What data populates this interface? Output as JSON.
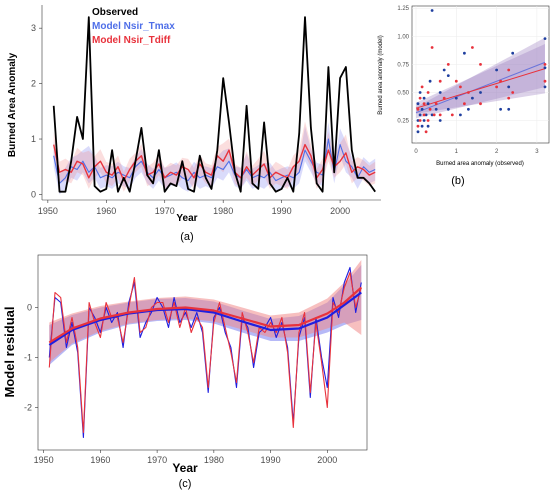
{
  "colors": {
    "observed": "#000000",
    "nsir_tmax": "#4f6fe8",
    "nsir_tdiff": "#e8323c",
    "band_blue": "#7a7ff0",
    "band_red": "#f08a8a",
    "obs_point": "#1f3f9f",
    "fit_band": "#9a7fbf"
  },
  "chart_data": [
    {
      "id": "a",
      "type": "line",
      "panel_label": "(a)",
      "xlabel": "Year",
      "ylabel": "Burned Area Anomaly",
      "xlim": [
        1949,
        2007
      ],
      "ylim": [
        -0.1,
        3.4
      ],
      "xticks": [
        1950,
        1960,
        1970,
        1980,
        1990,
        2000
      ],
      "yticks": [
        0,
        1,
        2,
        3
      ],
      "legend_position": "top-left",
      "x": [
        1951,
        1952,
        1953,
        1954,
        1955,
        1956,
        1957,
        1958,
        1959,
        1960,
        1961,
        1962,
        1963,
        1964,
        1965,
        1966,
        1967,
        1968,
        1969,
        1970,
        1971,
        1972,
        1973,
        1974,
        1975,
        1976,
        1977,
        1978,
        1979,
        1980,
        1981,
        1982,
        1983,
        1984,
        1985,
        1986,
        1987,
        1988,
        1989,
        1990,
        1991,
        1992,
        1993,
        1994,
        1995,
        1996,
        1997,
        1998,
        1999,
        2000,
        2001,
        2002,
        2003,
        2004,
        2005,
        2006
      ],
      "series": [
        {
          "name": "Observed",
          "color": "#000000",
          "values": [
            1.6,
            0.05,
            0.05,
            0.6,
            1.4,
            1.0,
            3.2,
            0.15,
            0.05,
            0.1,
            0.8,
            0.05,
            0.3,
            0.05,
            0.6,
            1.2,
            0.35,
            0.2,
            0.8,
            0.05,
            0.2,
            0.15,
            0.6,
            0.1,
            0.05,
            0.7,
            0.3,
            0.1,
            0.8,
            2.1,
            1.3,
            0.4,
            0.05,
            1.6,
            0.2,
            0.1,
            1.3,
            0.2,
            0.05,
            0.1,
            0.3,
            0.05,
            1.1,
            3.2,
            1.2,
            0.2,
            0.05,
            2.3,
            0.4,
            2.1,
            2.3,
            0.8,
            0.3,
            0.3,
            0.2,
            0.05
          ]
        },
        {
          "name": "Model Nsir_Tmax",
          "color": "#4f6fe8",
          "values": [
            0.7,
            0.2,
            0.3,
            0.5,
            0.45,
            0.6,
            0.4,
            0.5,
            0.3,
            0.35,
            0.3,
            0.4,
            0.35,
            0.3,
            0.5,
            0.6,
            0.4,
            0.3,
            0.45,
            0.3,
            0.35,
            0.4,
            0.3,
            0.25,
            0.4,
            0.3,
            0.35,
            0.3,
            0.5,
            0.45,
            0.6,
            0.35,
            0.3,
            0.45,
            0.3,
            0.35,
            0.3,
            0.4,
            0.25,
            0.3,
            0.35,
            0.3,
            0.4,
            0.8,
            0.6,
            0.4,
            0.35,
            1.0,
            0.4,
            0.9,
            0.6,
            0.5,
            0.3,
            0.5,
            0.4,
            0.45
          ]
        },
        {
          "name": "Model Nsir_Tdiff",
          "color": "#e8323c",
          "values": [
            0.9,
            0.4,
            0.45,
            0.4,
            0.6,
            0.55,
            0.3,
            0.5,
            0.6,
            0.4,
            0.35,
            0.5,
            0.25,
            0.45,
            0.6,
            0.7,
            0.35,
            0.4,
            0.55,
            0.3,
            0.4,
            0.35,
            0.5,
            0.45,
            0.3,
            0.55,
            0.4,
            0.35,
            0.7,
            0.6,
            0.8,
            0.4,
            0.3,
            0.5,
            0.35,
            0.45,
            0.55,
            0.3,
            0.4,
            0.35,
            0.3,
            0.5,
            0.6,
            0.9,
            0.7,
            0.3,
            0.45,
            0.8,
            0.5,
            0.6,
            0.75,
            0.4,
            0.5,
            0.45,
            0.35,
            0.4
          ]
        }
      ]
    },
    {
      "id": "b",
      "type": "scatter",
      "panel_label": "(b)",
      "xlabel": "Burned area anomaly (observed)",
      "ylabel": "Burned area anomaly (model)",
      "xlim": [
        -0.1,
        3.3
      ],
      "ylim": [
        0.05,
        1.27
      ],
      "xticks": [
        0,
        1,
        2,
        3
      ],
      "yticks": [
        0.25,
        0.5,
        0.75,
        1.0,
        1.25
      ],
      "ytick_labels": [
        "0.25",
        "0.50",
        "0.75",
        "1.00",
        "1.25"
      ],
      "series": [
        {
          "name": "Nsir_Tmax",
          "color": "#1f3f9f",
          "points": [
            [
              0.05,
              0.15
            ],
            [
              0.05,
              0.25
            ],
            [
              0.05,
              0.4
            ],
            [
              0.1,
              0.3
            ],
            [
              0.1,
              0.5
            ],
            [
              0.15,
              0.2
            ],
            [
              0.15,
              0.35
            ],
            [
              0.2,
              0.25
            ],
            [
              0.2,
              0.45
            ],
            [
              0.25,
              0.3
            ],
            [
              0.3,
              0.4
            ],
            [
              0.3,
              0.2
            ],
            [
              0.35,
              0.6
            ],
            [
              0.4,
              1.23
            ],
            [
              0.4,
              0.3
            ],
            [
              0.5,
              0.35
            ],
            [
              0.6,
              0.25
            ],
            [
              0.6,
              0.5
            ],
            [
              0.7,
              0.7
            ],
            [
              0.8,
              0.35
            ],
            [
              0.8,
              0.65
            ],
            [
              1.0,
              0.45
            ],
            [
              1.1,
              0.3
            ],
            [
              1.2,
              0.85
            ],
            [
              1.3,
              0.35
            ],
            [
              1.4,
              0.45
            ],
            [
              1.6,
              0.5
            ],
            [
              2.0,
              0.7
            ],
            [
              2.1,
              0.35
            ],
            [
              2.3,
              0.35
            ],
            [
              2.3,
              0.55
            ],
            [
              2.4,
              0.85
            ],
            [
              3.2,
              0.98
            ],
            [
              3.2,
              0.55
            ],
            [
              3.2,
              0.72
            ]
          ]
        },
        {
          "name": "Nsir_Tdiff",
          "color": "#e8323c",
          "points": [
            [
              0.05,
              0.35
            ],
            [
              0.05,
              0.2
            ],
            [
              0.1,
              0.45
            ],
            [
              0.1,
              0.25
            ],
            [
              0.15,
              0.55
            ],
            [
              0.2,
              0.3
            ],
            [
              0.2,
              0.4
            ],
            [
              0.25,
              0.15
            ],
            [
              0.3,
              0.5
            ],
            [
              0.3,
              0.25
            ],
            [
              0.35,
              0.35
            ],
            [
              0.4,
              0.9
            ],
            [
              0.45,
              0.3
            ],
            [
              0.5,
              0.4
            ],
            [
              0.6,
              0.6
            ],
            [
              0.6,
              0.3
            ],
            [
              0.7,
              0.45
            ],
            [
              0.8,
              0.75
            ],
            [
              0.9,
              0.3
            ],
            [
              1.0,
              0.6
            ],
            [
              1.1,
              0.55
            ],
            [
              1.2,
              0.4
            ],
            [
              1.3,
              0.5
            ],
            [
              1.4,
              0.9
            ],
            [
              1.6,
              0.4
            ],
            [
              1.6,
              0.75
            ],
            [
              2.0,
              0.55
            ],
            [
              2.1,
              0.6
            ],
            [
              2.3,
              0.45
            ],
            [
              2.3,
              0.7
            ],
            [
              2.4,
              0.5
            ],
            [
              3.2,
              0.75
            ],
            [
              3.2,
              0.6
            ]
          ]
        }
      ],
      "fits": [
        {
          "name": "Nsir_Tmax",
          "intercept": 0.32,
          "slope": 0.14
        },
        {
          "name": "Nsir_Tdiff",
          "intercept": 0.36,
          "slope": 0.11
        }
      ]
    },
    {
      "id": "c",
      "type": "line",
      "panel_label": "(c)",
      "xlabel": "Year",
      "ylabel": "Model residual",
      "xlim": [
        1949,
        2007
      ],
      "ylim": [
        -2.85,
        1.05
      ],
      "xticks": [
        1950,
        1960,
        1970,
        1980,
        1990,
        2000
      ],
      "yticks": [
        -2,
        -1,
        0
      ],
      "x": [
        1951,
        1952,
        1953,
        1954,
        1955,
        1956,
        1957,
        1958,
        1959,
        1960,
        1961,
        1962,
        1963,
        1964,
        1965,
        1966,
        1967,
        1968,
        1969,
        1970,
        1971,
        1972,
        1973,
        1974,
        1975,
        1976,
        1977,
        1978,
        1979,
        1980,
        1981,
        1982,
        1983,
        1984,
        1985,
        1986,
        1987,
        1988,
        1989,
        1990,
        1991,
        1992,
        1993,
        1994,
        1995,
        1996,
        1997,
        1998,
        1999,
        2000,
        2001,
        2002,
        2003,
        2004,
        2005,
        2006
      ],
      "series": [
        {
          "name": "Nsir_Tmax",
          "color": "#1f1fe0",
          "values": [
            -1.0,
            0.2,
            0.1,
            -0.8,
            -0.3,
            -0.9,
            -2.6,
            0.0,
            -0.2,
            -0.5,
            0.0,
            -0.3,
            -0.1,
            -0.8,
            0.1,
            0.5,
            -0.6,
            -0.3,
            -0.1,
            0.2,
            0.0,
            -0.4,
            0.2,
            -0.3,
            -0.1,
            -0.4,
            -0.1,
            -0.5,
            -1.7,
            -0.2,
            0.0,
            -0.5,
            -0.8,
            -1.6,
            -0.2,
            -0.4,
            -1.2,
            -0.5,
            -0.4,
            -0.2,
            -0.6,
            -0.3,
            -0.8,
            -2.3,
            -0.6,
            -0.2,
            -1.8,
            -0.2,
            -1.0,
            -1.6,
            0.2,
            -0.2,
            0.5,
            0.8,
            -0.1,
            0.5
          ]
        },
        {
          "name": "Nsir_Tdiff",
          "color": "#e8323c",
          "values": [
            -1.2,
            0.3,
            0.2,
            -0.7,
            -0.2,
            -0.8,
            -2.5,
            0.1,
            -0.3,
            -0.6,
            0.1,
            -0.2,
            -0.2,
            -0.7,
            0.0,
            0.6,
            -0.5,
            -0.4,
            0.0,
            0.1,
            0.1,
            -0.3,
            0.1,
            -0.4,
            0.0,
            -0.5,
            -0.2,
            -0.4,
            -1.6,
            -0.3,
            0.1,
            -0.4,
            -0.9,
            -1.5,
            -0.1,
            -0.5,
            -1.1,
            -0.4,
            -0.5,
            -0.3,
            -0.5,
            -0.2,
            -0.9,
            -2.4,
            -0.5,
            -0.1,
            -1.7,
            -0.3,
            -1.1,
            -2.0,
            0.1,
            -0.1,
            0.4,
            0.7,
            0.0,
            0.4
          ]
        }
      ],
      "trend_x": [
        1951,
        1955,
        1960,
        1965,
        1970,
        1975,
        1980,
        1985,
        1990,
        1995,
        2000,
        2003,
        2006
      ],
      "trend": [
        {
          "name": "Nsir_Tmax",
          "color": "#1f1fe0",
          "values": [
            -0.75,
            -0.45,
            -0.25,
            -0.12,
            -0.05,
            -0.03,
            -0.1,
            -0.28,
            -0.45,
            -0.42,
            -0.2,
            0.05,
            0.3
          ]
        },
        {
          "name": "Nsir_Tdiff",
          "color": "#e8323c",
          "values": [
            -0.7,
            -0.42,
            -0.22,
            -0.1,
            -0.03,
            0.0,
            -0.06,
            -0.22,
            -0.38,
            -0.35,
            -0.12,
            0.1,
            0.4
          ]
        }
      ]
    }
  ]
}
